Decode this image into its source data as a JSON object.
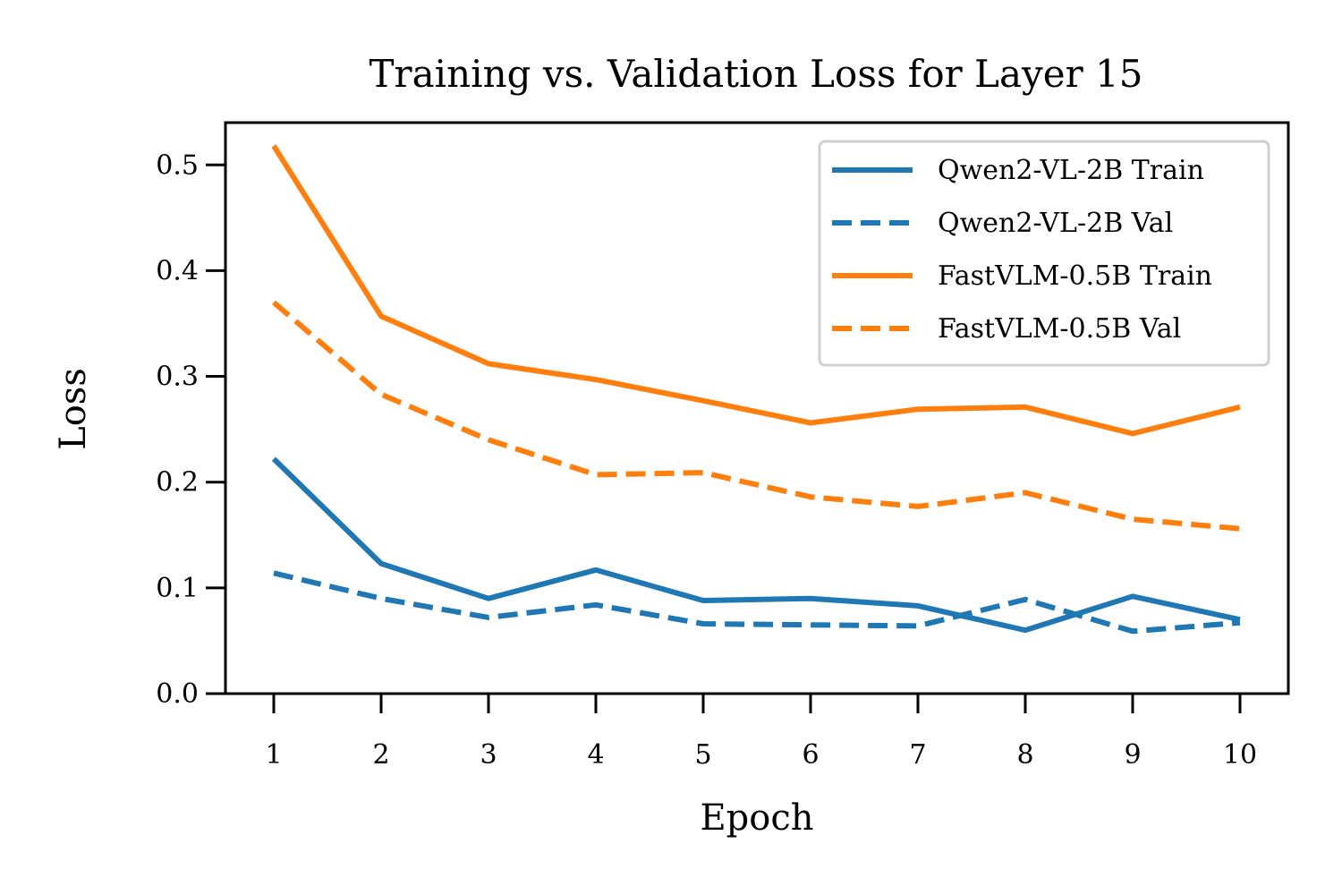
{
  "chart_data": {
    "type": "line",
    "title": "Training vs. Validation Loss for Layer 15",
    "xlabel": "Epoch",
    "ylabel": "Loss",
    "x": [
      1,
      2,
      3,
      4,
      5,
      6,
      7,
      8,
      9,
      10
    ],
    "xticks": [
      "1",
      "2",
      "3",
      "4",
      "5",
      "6",
      "7",
      "8",
      "9",
      "10"
    ],
    "yticks": [
      "0.0",
      "0.1",
      "0.2",
      "0.3",
      "0.4",
      "0.5"
    ],
    "xlim": [
      0.55,
      10.45
    ],
    "ylim": [
      0.0,
      0.54
    ],
    "grid": false,
    "legend_position": "top-right",
    "series": [
      {
        "name": "Qwen2-VL-2B Train",
        "color": "#1f77b4",
        "style": "solid",
        "values": [
          0.222,
          0.123,
          0.09,
          0.117,
          0.088,
          0.09,
          0.083,
          0.06,
          0.092,
          0.07
        ]
      },
      {
        "name": "Qwen2-VL-2B Val",
        "color": "#1f77b4",
        "style": "dashed",
        "values": [
          0.114,
          0.09,
          0.072,
          0.084,
          0.066,
          0.065,
          0.064,
          0.089,
          0.059,
          0.067
        ]
      },
      {
        "name": "FastVLM-0.5B Train",
        "color": "#ff7f0e",
        "style": "solid",
        "values": [
          0.518,
          0.357,
          0.312,
          0.297,
          0.277,
          0.256,
          0.269,
          0.271,
          0.246,
          0.271
        ]
      },
      {
        "name": "FastVLM-0.5B Val",
        "color": "#ff7f0e",
        "style": "dashed",
        "values": [
          0.37,
          0.283,
          0.24,
          0.207,
          0.209,
          0.186,
          0.177,
          0.19,
          0.165,
          0.156
        ]
      }
    ]
  }
}
